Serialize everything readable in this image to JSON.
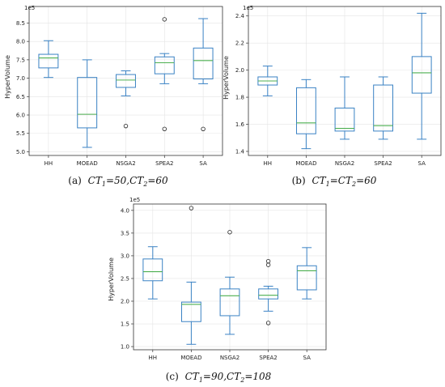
{
  "categories": [
    "HH",
    "MOEAD",
    "NSGA2",
    "SPEA2",
    "SA"
  ],
  "colors": {
    "box": "#3a82c4",
    "median": "#4caf50",
    "grid": "#e4e4e4",
    "frame": "#333333"
  },
  "chart_data": [
    {
      "type": "box",
      "caption": {
        "prefix": "(a)",
        "text": "CT1=50,CT2=60"
      },
      "ylabel": "HyperVolume",
      "exponent_label": "1e5",
      "ylim": [
        4.9,
        8.95
      ],
      "yticks": [
        5.0,
        5.5,
        6.0,
        6.5,
        7.0,
        7.5,
        8.0,
        8.5
      ],
      "tick_labels": [
        "5.0",
        "5.5",
        "6.0",
        "6.5",
        "7.0",
        "7.5",
        "8.0",
        "8.5"
      ],
      "categories": [
        "HH",
        "MOEAD",
        "NSGA2",
        "SPEA2",
        "SA"
      ],
      "boxes": [
        {
          "whislo": 7.02,
          "q1": 7.28,
          "med": 7.55,
          "q3": 7.65,
          "whishi": 8.02,
          "fliers": []
        },
        {
          "whislo": 5.12,
          "q1": 5.65,
          "med": 6.02,
          "q3": 7.02,
          "whishi": 7.5,
          "fliers": []
        },
        {
          "whislo": 6.52,
          "q1": 6.75,
          "med": 6.95,
          "q3": 7.1,
          "whishi": 7.2,
          "fliers": [
            5.7
          ]
        },
        {
          "whislo": 6.85,
          "q1": 7.12,
          "med": 7.42,
          "q3": 7.58,
          "whishi": 7.67,
          "fliers": [
            8.6,
            5.62
          ]
        },
        {
          "whislo": 6.85,
          "q1": 6.98,
          "med": 7.48,
          "q3": 7.82,
          "whishi": 8.62,
          "fliers": [
            5.62
          ]
        }
      ]
    },
    {
      "type": "box",
      "caption": {
        "prefix": "(b)",
        "text": "CT1=CT2=60"
      },
      "ylabel": "HyperVolume",
      "exponent_label": "1e5",
      "ylim": [
        1.37,
        2.47
      ],
      "yticks": [
        1.4,
        1.6,
        1.8,
        2.0,
        2.2,
        2.4
      ],
      "tick_labels": [
        "1.4",
        "1.6",
        "1.8",
        "2.0",
        "2.2",
        "2.4"
      ],
      "categories": [
        "HH",
        "MOEAD",
        "NSGA2",
        "SPEA2",
        "SA"
      ],
      "boxes": [
        {
          "whislo": 1.81,
          "q1": 1.89,
          "med": 1.92,
          "q3": 1.95,
          "whishi": 2.03,
          "fliers": []
        },
        {
          "whislo": 1.42,
          "q1": 1.53,
          "med": 1.61,
          "q3": 1.87,
          "whishi": 1.93,
          "fliers": []
        },
        {
          "whislo": 1.49,
          "q1": 1.55,
          "med": 1.57,
          "q3": 1.72,
          "whishi": 1.95,
          "fliers": []
        },
        {
          "whislo": 1.49,
          "q1": 1.55,
          "med": 1.59,
          "q3": 1.89,
          "whishi": 1.95,
          "fliers": []
        },
        {
          "whislo": 1.49,
          "q1": 1.83,
          "med": 1.98,
          "q3": 2.1,
          "whishi": 2.42,
          "fliers": []
        }
      ]
    },
    {
      "type": "box",
      "caption": {
        "prefix": "(c)",
        "text": "CT1=90,CT2=108"
      },
      "ylabel": "HyperVolume",
      "exponent_label": "1e5",
      "ylim": [
        0.93,
        4.14
      ],
      "yticks": [
        1.0,
        1.5,
        2.0,
        2.5,
        3.0,
        3.5,
        4.0
      ],
      "tick_labels": [
        "1.0",
        "1.5",
        "2.0",
        "2.5",
        "3.0",
        "3.5",
        "4.0"
      ],
      "categories": [
        "HH",
        "MOEAD",
        "NSGA2",
        "SPEA2",
        "SA"
      ],
      "boxes": [
        {
          "whislo": 2.05,
          "q1": 2.45,
          "med": 2.65,
          "q3": 2.93,
          "whishi": 3.2,
          "fliers": []
        },
        {
          "whislo": 1.05,
          "q1": 1.55,
          "med": 1.93,
          "q3": 1.98,
          "whishi": 2.42,
          "fliers": [
            4.05
          ]
        },
        {
          "whislo": 1.27,
          "q1": 1.68,
          "med": 2.12,
          "q3": 2.27,
          "whishi": 2.53,
          "fliers": [
            3.52
          ]
        },
        {
          "whislo": 1.78,
          "q1": 2.05,
          "med": 2.13,
          "q3": 2.27,
          "whishi": 2.33,
          "fliers": [
            2.88,
            2.8,
            1.52
          ]
        },
        {
          "whislo": 2.05,
          "q1": 2.25,
          "med": 2.67,
          "q3": 2.78,
          "whishi": 3.18,
          "fliers": []
        }
      ]
    }
  ]
}
